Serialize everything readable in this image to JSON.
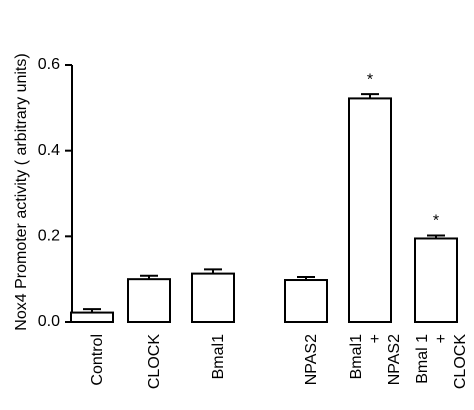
{
  "chart_data": {
    "type": "bar",
    "y_label": "Nox4 Promoter activity ( arbitrary units)",
    "categories": [
      [
        "Control"
      ],
      [
        "CLOCK"
      ],
      [
        "Bmal1"
      ],
      [
        "NPAS2"
      ],
      [
        "Bmal1",
        "+",
        "NPAS2"
      ],
      [
        "Bmal 1",
        "+",
        "CLOCK"
      ]
    ],
    "values": [
      0.022,
      0.1,
      0.113,
      0.098,
      0.522,
      0.195
    ],
    "errors": [
      0.008,
      0.008,
      0.01,
      0.007,
      0.01,
      0.007
    ],
    "markers": [
      null,
      null,
      null,
      null,
      "*",
      "*"
    ],
    "color": "#ffffff",
    "ylim": [
      0,
      0.6
    ],
    "yticks": [
      {
        "value": 0,
        "label": "0.0"
      },
      0.2,
      0.4,
      0.6
    ],
    "grid": false
  }
}
